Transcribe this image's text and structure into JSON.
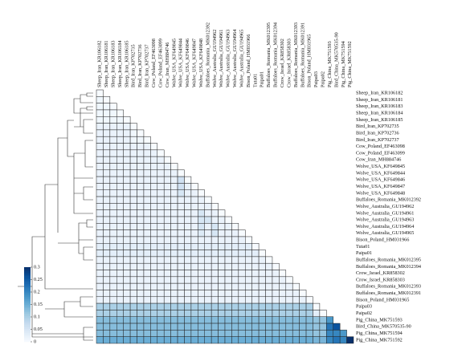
{
  "chart_data": {
    "type": "heatmap",
    "labels": [
      "Sheep_Iran_KR106182",
      "Sheep_Iran_KR106181",
      "Sheep_Iran_KR106183",
      "Sheep_Iran_KR106184",
      "Sheep_Iran_KR106185",
      "Bird_Iran_KP702735",
      "Bird_Iran_KP702736",
      "Bird_Iran_KP702737",
      "Cow_Poland_EF463098",
      "Cow_Poland_EF463099",
      "Cow_Iran_MH884746",
      "Wolve_USA_KF649845",
      "Wolve_USA_KF649844",
      "Wolve_USA_KF649846",
      "Wolve_USA_KF649847",
      "Wolve_USA_KF649848",
      "Buffaloes_Romania_MK012392",
      "Wolve_Australia_GU194962",
      "Wolve_Australia_GU194961",
      "Wolve_Australia_GU194963",
      "Wolve_Australia_GU194964",
      "Wolve_Australia_GU194965",
      "Bison_Poland_HM031966",
      "Tuta01",
      "Paipa01",
      "Buffaloes_Romania_MK012395",
      "Buffaloes_Romania_MK012394",
      "Crow_Israel_KR858302",
      "Crow_Israel_KR858303",
      "Buffaloes_Romania_MK012393",
      "Buffaloes_Romania_MK012391",
      "Bison_Poland_HM031965",
      "Paipa03",
      "Paipa02",
      "Pig_China_MK751593",
      "Bird_China_MK570535-90",
      "Pig_China_MK751594",
      "Pig_China_MK751592"
    ],
    "matrix": [
      [
        0
      ],
      [
        0.01,
        0
      ],
      [
        0.01,
        0.01,
        0
      ],
      [
        0.01,
        0.01,
        0.01,
        0
      ],
      [
        0.01,
        0.01,
        0.01,
        0.01,
        0
      ],
      [
        0.02,
        0.02,
        0.02,
        0.02,
        0.02,
        0
      ],
      [
        0.02,
        0.02,
        0.02,
        0.02,
        0.02,
        0.01,
        0
      ],
      [
        0.02,
        0.02,
        0.02,
        0.02,
        0.02,
        0.01,
        0.01,
        0
      ],
      [
        0.02,
        0.02,
        0.02,
        0.02,
        0.02,
        0.02,
        0.02,
        0.02,
        0
      ],
      [
        0.02,
        0.02,
        0.02,
        0.02,
        0.02,
        0.02,
        0.02,
        0.02,
        0.02,
        0
      ],
      [
        0.02,
        0.02,
        0.02,
        0.02,
        0.02,
        0.02,
        0.02,
        0.02,
        0.02,
        0.02,
        0
      ],
      [
        0.02,
        0.02,
        0.02,
        0.02,
        0.02,
        0.02,
        0.02,
        0.02,
        0.02,
        0.02,
        0.02,
        0
      ],
      [
        0.02,
        0.02,
        0.02,
        0.02,
        0.02,
        0.02,
        0.02,
        0.02,
        0.02,
        0.02,
        0.02,
        0.02,
        0
      ],
      [
        0.02,
        0.02,
        0.02,
        0.02,
        0.02,
        0.02,
        0.02,
        0.02,
        0.02,
        0.02,
        0.02,
        0.02,
        0.06,
        0
      ],
      [
        0.02,
        0.02,
        0.02,
        0.02,
        0.02,
        0.02,
        0.02,
        0.02,
        0.02,
        0.02,
        0.02,
        0.02,
        0.06,
        0.02,
        0
      ],
      [
        0.02,
        0.02,
        0.02,
        0.02,
        0.02,
        0.02,
        0.02,
        0.02,
        0.02,
        0.02,
        0.02,
        0.02,
        0.05,
        0.02,
        0.02,
        0
      ],
      [
        0.02,
        0.02,
        0.02,
        0.02,
        0.02,
        0.02,
        0.02,
        0.02,
        0.02,
        0.02,
        0.02,
        0.02,
        0.02,
        0.02,
        0.02,
        0.02,
        0
      ],
      [
        0.02,
        0.02,
        0.02,
        0.02,
        0.02,
        0.02,
        0.02,
        0.02,
        0.02,
        0.02,
        0.02,
        0.02,
        0.02,
        0.02,
        0.02,
        0.02,
        0.02,
        0
      ],
      [
        0.02,
        0.02,
        0.02,
        0.02,
        0.02,
        0.02,
        0.02,
        0.02,
        0.02,
        0.02,
        0.02,
        0.02,
        0.02,
        0.02,
        0.02,
        0.05,
        0.02,
        0.02,
        0
      ],
      [
        0.02,
        0.02,
        0.02,
        0.02,
        0.02,
        0.02,
        0.02,
        0.02,
        0.02,
        0.02,
        0.02,
        0.02,
        0.02,
        0.02,
        0.02,
        0.05,
        0.05,
        0.02,
        0.02,
        0
      ],
      [
        0.02,
        0.02,
        0.02,
        0.02,
        0.02,
        0.02,
        0.02,
        0.02,
        0.02,
        0.02,
        0.02,
        0.02,
        0.02,
        0.02,
        0.02,
        0.05,
        0.02,
        0.05,
        0.02,
        0.02,
        0
      ],
      [
        0.02,
        0.02,
        0.02,
        0.02,
        0.02,
        0.02,
        0.02,
        0.02,
        0.02,
        0.02,
        0.02,
        0.02,
        0.02,
        0.02,
        0.02,
        0.04,
        0.02,
        0.05,
        0.02,
        0.02,
        0.02,
        0
      ],
      [
        0.02,
        0.02,
        0.02,
        0.02,
        0.02,
        0.02,
        0.02,
        0.02,
        0.02,
        0.02,
        0.02,
        0.02,
        0.02,
        0.02,
        0.02,
        0.02,
        0.02,
        0.02,
        0.02,
        0.02,
        0.02,
        0.02,
        0
      ],
      [
        0.03,
        0.03,
        0.03,
        0.03,
        0.03,
        0.03,
        0.03,
        0.03,
        0.03,
        0.03,
        0.03,
        0.03,
        0.03,
        0.03,
        0.03,
        0.03,
        0.03,
        0.03,
        0.03,
        0.03,
        0.03,
        0.03,
        0.03,
        0
      ],
      [
        0.03,
        0.03,
        0.03,
        0.03,
        0.03,
        0.03,
        0.03,
        0.03,
        0.03,
        0.03,
        0.03,
        0.03,
        0.03,
        0.03,
        0.03,
        0.03,
        0.03,
        0.03,
        0.03,
        0.03,
        0.03,
        0.03,
        0.03,
        0.03,
        0
      ],
      [
        0.02,
        0.02,
        0.02,
        0.02,
        0.02,
        0.02,
        0.02,
        0.02,
        0.02,
        0.02,
        0.02,
        0.02,
        0.02,
        0.02,
        0.02,
        0.02,
        0.02,
        0.02,
        0.02,
        0.02,
        0.02,
        0.02,
        0.02,
        0.02,
        0.02,
        0
      ],
      [
        0.02,
        0.02,
        0.02,
        0.02,
        0.02,
        0.02,
        0.02,
        0.02,
        0.02,
        0.02,
        0.02,
        0.02,
        0.02,
        0.02,
        0.02,
        0.02,
        0.02,
        0.02,
        0.02,
        0.02,
        0.02,
        0.02,
        0.02,
        0.02,
        0.02,
        0.02,
        0
      ],
      [
        0.02,
        0.02,
        0.02,
        0.02,
        0.02,
        0.02,
        0.02,
        0.02,
        0.02,
        0.02,
        0.02,
        0.02,
        0.02,
        0.02,
        0.02,
        0.02,
        0.02,
        0.02,
        0.02,
        0.02,
        0.02,
        0.02,
        0.02,
        0.02,
        0.02,
        0.02,
        0.02,
        0
      ],
      [
        0.02,
        0.02,
        0.02,
        0.02,
        0.02,
        0.02,
        0.02,
        0.02,
        0.02,
        0.02,
        0.02,
        0.02,
        0.02,
        0.02,
        0.02,
        0.02,
        0.02,
        0.02,
        0.02,
        0.02,
        0.02,
        0.02,
        0.02,
        0.02,
        0.02,
        0.02,
        0.02,
        0.02,
        0
      ],
      [
        0.02,
        0.02,
        0.02,
        0.02,
        0.02,
        0.02,
        0.02,
        0.02,
        0.02,
        0.02,
        0.02,
        0.02,
        0.02,
        0.02,
        0.02,
        0.02,
        0.02,
        0.02,
        0.02,
        0.02,
        0.02,
        0.02,
        0.02,
        0.02,
        0.02,
        0.02,
        0.02,
        0.02,
        0.02,
        0
      ],
      [
        0.02,
        0.02,
        0.02,
        0.02,
        0.02,
        0.02,
        0.02,
        0.02,
        0.02,
        0.02,
        0.02,
        0.02,
        0.02,
        0.02,
        0.02,
        0.02,
        0.02,
        0.02,
        0.02,
        0.02,
        0.02,
        0.02,
        0.02,
        0.02,
        0.02,
        0.02,
        0.02,
        0.02,
        0.02,
        0.02,
        0
      ],
      [
        0.02,
        0.02,
        0.02,
        0.02,
        0.02,
        0.02,
        0.02,
        0.02,
        0.02,
        0.02,
        0.02,
        0.02,
        0.02,
        0.02,
        0.02,
        0.02,
        0.02,
        0.02,
        0.02,
        0.02,
        0.02,
        0.02,
        0.02,
        0.02,
        0.02,
        0.02,
        0.02,
        0.02,
        0.02,
        0.02,
        0.02,
        0
      ],
      [
        0.1,
        0.1,
        0.1,
        0.1,
        0.1,
        0.1,
        0.1,
        0.1,
        0.1,
        0.1,
        0.1,
        0.1,
        0.1,
        0.1,
        0.1,
        0.1,
        0.1,
        0.1,
        0.1,
        0.1,
        0.1,
        0.1,
        0.1,
        0.1,
        0.1,
        0.1,
        0.1,
        0.1,
        0.1,
        0.1,
        0.1,
        0.1,
        0
      ],
      [
        0.1,
        0.1,
        0.1,
        0.1,
        0.1,
        0.1,
        0.1,
        0.1,
        0.1,
        0.1,
        0.1,
        0.1,
        0.1,
        0.1,
        0.1,
        0.1,
        0.1,
        0.1,
        0.1,
        0.1,
        0.1,
        0.1,
        0.1,
        0.1,
        0.1,
        0.1,
        0.1,
        0.1,
        0.1,
        0.1,
        0.1,
        0.1,
        0.03,
        0
      ],
      [
        0.13,
        0.13,
        0.13,
        0.13,
        0.13,
        0.13,
        0.13,
        0.13,
        0.13,
        0.13,
        0.13,
        0.13,
        0.13,
        0.13,
        0.13,
        0.13,
        0.13,
        0.13,
        0.13,
        0.13,
        0.13,
        0.13,
        0.13,
        0.13,
        0.13,
        0.13,
        0.13,
        0.13,
        0.13,
        0.13,
        0.13,
        0.13,
        0.12,
        0.12,
        0.18
      ],
      [
        0.13,
        0.13,
        0.13,
        0.13,
        0.13,
        0.13,
        0.13,
        0.13,
        0.13,
        0.13,
        0.13,
        0.13,
        0.13,
        0.13,
        0.13,
        0.13,
        0.13,
        0.13,
        0.13,
        0.13,
        0.13,
        0.13,
        0.13,
        0.13,
        0.13,
        0.13,
        0.13,
        0.13,
        0.13,
        0.13,
        0.13,
        0.13,
        0.12,
        0.12,
        0.22,
        0.26
      ],
      [
        0.13,
        0.13,
        0.13,
        0.13,
        0.13,
        0.13,
        0.13,
        0.13,
        0.13,
        0.13,
        0.13,
        0.13,
        0.13,
        0.13,
        0.13,
        0.13,
        0.13,
        0.13,
        0.13,
        0.13,
        0.13,
        0.13,
        0.13,
        0.13,
        0.13,
        0.13,
        0.13,
        0.13,
        0.13,
        0.13,
        0.13,
        0.13,
        0.12,
        0.12,
        0.2,
        0.2,
        0.18
      ],
      [
        0.15,
        0.15,
        0.15,
        0.15,
        0.15,
        0.15,
        0.15,
        0.15,
        0.15,
        0.15,
        0.15,
        0.15,
        0.15,
        0.15,
        0.15,
        0.15,
        0.15,
        0.15,
        0.15,
        0.15,
        0.15,
        0.15,
        0.15,
        0.15,
        0.15,
        0.15,
        0.15,
        0.15,
        0.15,
        0.15,
        0.15,
        0.15,
        0.14,
        0.14,
        0.2,
        0.22,
        0.2,
        0.3
      ]
    ],
    "zlim": [
      0,
      0.3
    ],
    "zticks": [
      0,
      0.05,
      0.1,
      0.15,
      0.2,
      0.25,
      0.3
    ],
    "colormap": [
      "#f7fbff",
      "#deebf7",
      "#c6dbef",
      "#9ecae1",
      "#6baed6",
      "#4292c6",
      "#2171b5",
      "#08519c",
      "#08306b"
    ]
  }
}
